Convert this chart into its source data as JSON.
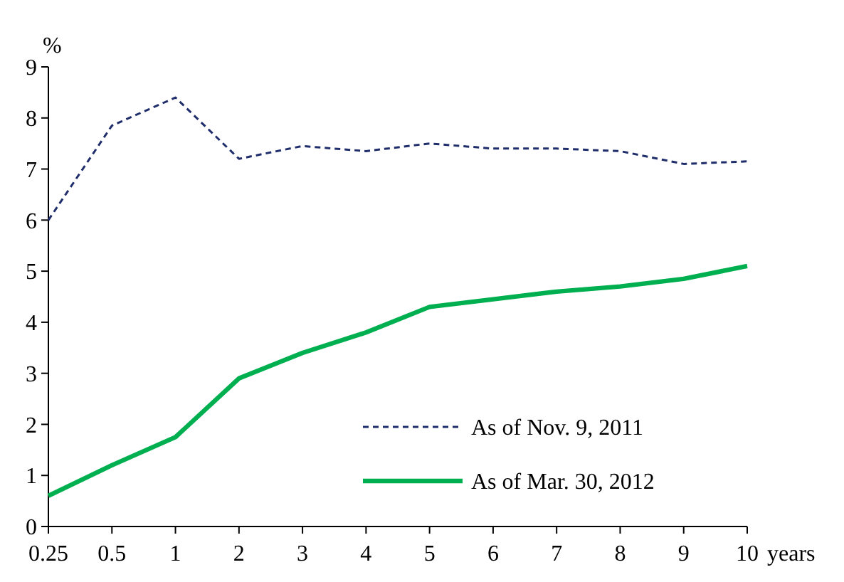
{
  "chart_data": {
    "type": "line",
    "ylabel": "%",
    "xlabel": "years",
    "categories": [
      "0.25",
      "0.5",
      "1",
      "2",
      "3",
      "4",
      "5",
      "6",
      "7",
      "8",
      "9",
      "10"
    ],
    "series": [
      {
        "name": "As of Nov. 9, 2011",
        "color": "#1f2d6b",
        "line_style": "dashed",
        "values": [
          6.0,
          7.85,
          8.4,
          7.2,
          7.45,
          7.35,
          7.5,
          7.4,
          7.4,
          7.35,
          7.1,
          7.15
        ]
      },
      {
        "name": "As of Mar. 30, 2012",
        "color": "#00b050",
        "line_style": "solid",
        "values": [
          0.6,
          1.2,
          1.75,
          2.9,
          3.4,
          3.8,
          4.3,
          4.45,
          4.6,
          4.7,
          4.85,
          5.1
        ]
      }
    ],
    "ylim": [
      0,
      9
    ],
    "yticks": [
      0,
      1,
      2,
      3,
      4,
      5,
      6,
      7,
      8,
      9
    ],
    "grid": false,
    "legend": "bottom right",
    "marker": "none"
  }
}
